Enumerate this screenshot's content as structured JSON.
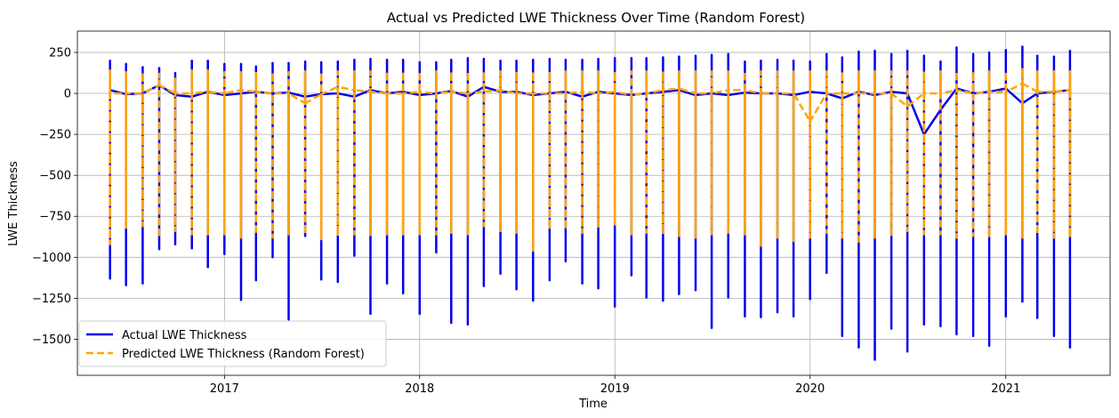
{
  "chart_data": {
    "type": "line",
    "title": "Actual vs Predicted LWE Thickness Over Time (Random Forest)",
    "xlabel": "Time",
    "ylabel": "LWE Thickness",
    "xlim": [
      "2016-04-01",
      "2021-07-15"
    ],
    "ylim": [
      -1720,
      380
    ],
    "grid": true,
    "legend": "lower-left",
    "x_ticks": [
      "2017",
      "2018",
      "2019",
      "2020",
      "2021"
    ],
    "y_ticks": [
      250,
      0,
      -250,
      -500,
      -750,
      -1000,
      -1250,
      -1500
    ],
    "series": [
      {
        "name": "Actual LWE Thickness",
        "color": "#0000ee",
        "style": "solid",
        "x": [
          "2016-06-01",
          "2016-07-01",
          "2016-08-01",
          "2016-09-01",
          "2016-10-01",
          "2016-11-01",
          "2016-12-01",
          "2017-01-01",
          "2017-02-01",
          "2017-03-01",
          "2017-04-01",
          "2017-05-01",
          "2017-06-01",
          "2017-07-01",
          "2017-08-01",
          "2017-09-01",
          "2017-10-01",
          "2017-11-01",
          "2017-12-01",
          "2018-01-01",
          "2018-02-01",
          "2018-03-01",
          "2018-04-01",
          "2018-05-01",
          "2018-06-01",
          "2018-07-01",
          "2018-08-01",
          "2018-09-01",
          "2018-10-01",
          "2018-11-01",
          "2018-12-01",
          "2019-01-01",
          "2019-02-01",
          "2019-03-01",
          "2019-04-01",
          "2019-05-01",
          "2019-06-01",
          "2019-07-01",
          "2019-08-01",
          "2019-09-01",
          "2019-10-01",
          "2019-11-01",
          "2019-12-01",
          "2020-01-01",
          "2020-02-01",
          "2020-03-01",
          "2020-04-01",
          "2020-05-01",
          "2020-06-01",
          "2020-07-01",
          "2020-08-01",
          "2020-09-01",
          "2020-10-01",
          "2020-11-01",
          "2020-12-01",
          "2021-01-01",
          "2021-02-01",
          "2021-03-01",
          "2021-04-01",
          "2021-05-01"
        ],
        "high": [
          200,
          180,
          160,
          155,
          125,
          200,
          200,
          180,
          180,
          165,
          185,
          185,
          195,
          190,
          195,
          205,
          210,
          205,
          205,
          190,
          190,
          205,
          215,
          210,
          200,
          200,
          205,
          210,
          205,
          205,
          210,
          215,
          215,
          215,
          220,
          225,
          230,
          235,
          240,
          195,
          200,
          205,
          200,
          195,
          240,
          220,
          255,
          260,
          240,
          260,
          230,
          195,
          280,
          240,
          250,
          265,
          285,
          230,
          225,
          260
        ],
        "low": [
          -1130,
          -1170,
          -1160,
          -950,
          -920,
          -945,
          -1060,
          -980,
          -1260,
          -1140,
          -1000,
          -1380,
          -870,
          -1135,
          -1150,
          -990,
          -1345,
          -1160,
          -1220,
          -1345,
          -970,
          -1400,
          -1410,
          -1175,
          -1100,
          -1195,
          -1265,
          -1140,
          -1025,
          -1160,
          -1190,
          -1300,
          -1110,
          -1245,
          -1265,
          -1225,
          -1200,
          -1430,
          -1245,
          -1360,
          -1365,
          -1335,
          -1360,
          -1255,
          -1095,
          -1480,
          -1550,
          -1625,
          -1435,
          -1575,
          -1410,
          -1420,
          -1470,
          -1480,
          -1540,
          -1360,
          -1270,
          -1370,
          -1480,
          -1550
        ],
        "level": [
          20,
          -5,
          0,
          50,
          -10,
          -20,
          10,
          -10,
          0,
          10,
          0,
          5,
          -20,
          -5,
          0,
          -20,
          20,
          0,
          10,
          -10,
          0,
          15,
          -20,
          40,
          10,
          10,
          -10,
          0,
          10,
          -20,
          10,
          0,
          -10,
          0,
          10,
          20,
          -10,
          0,
          -10,
          5,
          0,
          0,
          -10,
          10,
          0,
          -30,
          10,
          -10,
          10,
          0,
          -250,
          -100,
          30,
          0,
          10,
          30,
          -60,
          0,
          10,
          20
        ]
      },
      {
        "name": "Predicted LWE Thickness (Random Forest)",
        "color": "#ffa500",
        "style": "dashed",
        "x": [
          "2016-06-01",
          "2016-07-01",
          "2016-08-01",
          "2016-09-01",
          "2016-10-01",
          "2016-11-01",
          "2016-12-01",
          "2017-01-01",
          "2017-02-01",
          "2017-03-01",
          "2017-04-01",
          "2017-05-01",
          "2017-06-01",
          "2017-07-01",
          "2017-08-01",
          "2017-09-01",
          "2017-10-01",
          "2017-11-01",
          "2017-12-01",
          "2018-01-01",
          "2018-02-01",
          "2018-03-01",
          "2018-04-01",
          "2018-05-01",
          "2018-06-01",
          "2018-07-01",
          "2018-08-01",
          "2018-09-01",
          "2018-10-01",
          "2018-11-01",
          "2018-12-01",
          "2019-01-01",
          "2019-02-01",
          "2019-03-01",
          "2019-04-01",
          "2019-05-01",
          "2019-06-01",
          "2019-07-01",
          "2019-08-01",
          "2019-09-01",
          "2019-10-01",
          "2019-11-01",
          "2019-12-01",
          "2020-01-01",
          "2020-02-01",
          "2020-03-01",
          "2020-04-01",
          "2020-05-01",
          "2020-06-01",
          "2020-07-01",
          "2020-08-01",
          "2020-09-01",
          "2020-10-01",
          "2020-11-01",
          "2020-12-01",
          "2021-01-01",
          "2021-02-01",
          "2021-03-01",
          "2021-04-01",
          "2021-05-01"
        ],
        "high": [
          140,
          130,
          130,
          120,
          90,
          140,
          140,
          130,
          130,
          130,
          130,
          130,
          135,
          130,
          135,
          135,
          135,
          135,
          135,
          135,
          135,
          135,
          135,
          135,
          135,
          135,
          135,
          135,
          135,
          135,
          135,
          135,
          135,
          135,
          135,
          135,
          135,
          135,
          135,
          135,
          135,
          135,
          135,
          135,
          135,
          135,
          135,
          135,
          135,
          135,
          135,
          135,
          135,
          135,
          135,
          135,
          155,
          135,
          135,
          135
        ],
        "low": [
          -920,
          -820,
          -810,
          -880,
          -840,
          -860,
          -860,
          -860,
          -880,
          -860,
          -880,
          -860,
          -860,
          -890,
          -870,
          -860,
          -870,
          -860,
          -860,
          -860,
          -860,
          -850,
          -860,
          -810,
          -840,
          -850,
          -960,
          -830,
          -830,
          -850,
          -820,
          -800,
          -860,
          -850,
          -860,
          -870,
          -880,
          -860,
          -850,
          -860,
          -930,
          -880,
          -900,
          -880,
          -850,
          -880,
          -920,
          -880,
          -870,
          -840,
          -860,
          -860,
          -880,
          -870,
          -880,
          -860,
          -880,
          -860,
          -880,
          -880
        ],
        "level": [
          0,
          0,
          0,
          50,
          0,
          0,
          10,
          0,
          20,
          10,
          0,
          0,
          -60,
          -5,
          40,
          20,
          10,
          0,
          0,
          10,
          0,
          10,
          0,
          10,
          20,
          0,
          0,
          0,
          0,
          10,
          0,
          10,
          -10,
          0,
          20,
          30,
          0,
          0,
          20,
          20,
          0,
          0,
          0,
          -170,
          0,
          0,
          0,
          0,
          0,
          -80,
          0,
          0,
          20,
          0,
          10,
          10,
          60,
          10,
          10,
          20
        ]
      }
    ]
  }
}
